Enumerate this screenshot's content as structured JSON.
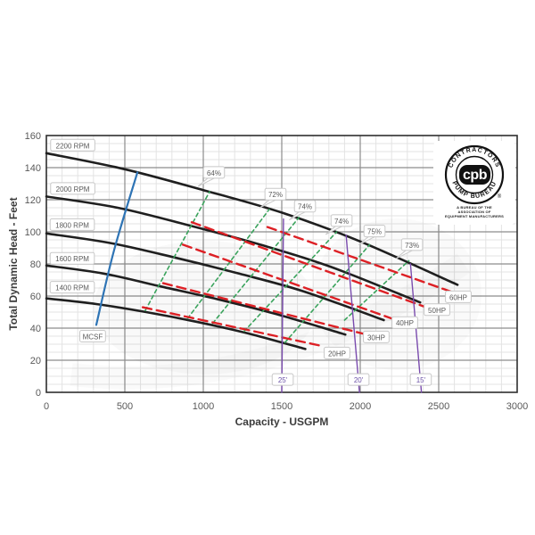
{
  "colors": {
    "rpm_curve": "#1f1f1f",
    "mcsf_line": "#2e74b5",
    "efficiency_line": "#3aa35c",
    "hp_line": "#dd2025",
    "npsh_line": "#7a4bae",
    "grid_major": "#8c8c8c",
    "grid_minor": "#e3e3e3",
    "plot_border": "#2e2e2e",
    "tick_text": "#595959",
    "label_box_border": "#c8c8c8",
    "label_text": "#595959",
    "npsh_label_text": "#6e55a8"
  },
  "chart_data": {
    "type": "line",
    "title": "",
    "xlabel": "Capacity - USGPM",
    "ylabel": "Total Dynamic Head - Feet",
    "xlim": [
      0,
      3000
    ],
    "ylim": [
      0,
      160
    ],
    "x_ticks": [
      0,
      500,
      1000,
      1500,
      2000,
      2500,
      3000
    ],
    "y_ticks": [
      0,
      20,
      40,
      60,
      80,
      100,
      120,
      140,
      160
    ],
    "x_minor_step": 100,
    "y_minor_step": 5,
    "grid": "on",
    "series": [
      {
        "name": "2200 RPM",
        "group": "rpm",
        "points": [
          [
            0,
            149
          ],
          [
            500,
            139
          ],
          [
            1000,
            126
          ],
          [
            1500,
            112
          ],
          [
            2000,
            94
          ],
          [
            2620,
            67
          ]
        ]
      },
      {
        "name": "2000 RPM",
        "group": "rpm",
        "points": [
          [
            0,
            122
          ],
          [
            455,
            115
          ],
          [
            909,
            104
          ],
          [
            1364,
            92
          ],
          [
            1818,
            78
          ],
          [
            2382,
            56
          ]
        ]
      },
      {
        "name": "1800 RPM",
        "group": "rpm",
        "points": [
          [
            0,
            99
          ],
          [
            409,
            93
          ],
          [
            818,
            84
          ],
          [
            1227,
            74
          ],
          [
            1636,
            63
          ],
          [
            2150,
            45
          ]
        ]
      },
      {
        "name": "1600 RPM",
        "group": "rpm",
        "points": [
          [
            0,
            79
          ],
          [
            364,
            74
          ],
          [
            727,
            66
          ],
          [
            1091,
            58
          ],
          [
            1455,
            49
          ],
          [
            1905,
            36
          ]
        ]
      },
      {
        "name": "1400 RPM",
        "group": "rpm",
        "points": [
          [
            0,
            58.5
          ],
          [
            318,
            55
          ],
          [
            636,
            50
          ],
          [
            955,
            44
          ],
          [
            1273,
            37
          ],
          [
            1650,
            27
          ]
        ]
      },
      {
        "name": "MCSF",
        "group": "mcsf",
        "points": [
          [
            318,
            42
          ],
          [
            430,
            88
          ],
          [
            580,
            137
          ]
        ]
      },
      {
        "name": "64%",
        "group": "efficiency",
        "points": [
          [
            630,
            51
          ],
          [
            1040,
            125
          ]
        ]
      },
      {
        "name": "72%",
        "group": "efficiency",
        "points": [
          [
            900,
            46
          ],
          [
            1420,
            114
          ]
        ]
      },
      {
        "name": "74%",
        "group": "efficiency",
        "points": [
          [
            1060,
            43
          ],
          [
            1610,
            109
          ]
        ]
      },
      {
        "name": "74%",
        "group": "efficiency",
        "points": [
          [
            1260,
            38
          ],
          [
            1850,
            100
          ]
        ]
      },
      {
        "name": "75%",
        "group": "efficiency",
        "points": [
          [
            1520,
            31
          ],
          [
            2060,
            92
          ]
        ]
      },
      {
        "name": "73%",
        "group": "efficiency",
        "points": [
          [
            1900,
            45
          ],
          [
            2310,
            82
          ]
        ]
      },
      {
        "name": "20HP",
        "group": "hp",
        "points": [
          [
            614,
            53
          ],
          [
            1750,
            29
          ]
        ]
      },
      {
        "name": "30HP",
        "group": "hp",
        "points": [
          [
            744,
            68
          ],
          [
            2040,
            36
          ]
        ]
      },
      {
        "name": "40HP",
        "group": "hp",
        "points": [
          [
            870,
            92
          ],
          [
            2230,
            45
          ]
        ]
      },
      {
        "name": "50HP",
        "group": "hp",
        "points": [
          [
            926,
            106
          ],
          [
            2420,
            53
          ]
        ]
      },
      {
        "name": "60HP",
        "group": "hp",
        "points": [
          [
            1409,
            103
          ],
          [
            2600,
            62
          ]
        ]
      },
      {
        "name": "25'",
        "group": "npsh",
        "points": [
          [
            1511,
            108
          ],
          [
            1500,
            0
          ]
        ]
      },
      {
        "name": "20'",
        "group": "npsh",
        "points": [
          [
            1910,
            98
          ],
          [
            1995,
            0
          ]
        ]
      },
      {
        "name": "15'",
        "group": "npsh",
        "points": [
          [
            2320,
            80
          ],
          [
            2390,
            0
          ]
        ]
      }
    ],
    "labels": [
      {
        "text": "2200 RPM",
        "g": 168,
        "f": 154,
        "kind": "rpm",
        "tail": false
      },
      {
        "text": "2000 RPM",
        "g": 168,
        "f": 127,
        "kind": "rpm",
        "tail": false
      },
      {
        "text": "1800 RPM",
        "g": 165,
        "f": 104.5,
        "kind": "rpm",
        "tail": false
      },
      {
        "text": "1600 RPM",
        "g": 165,
        "f": 83.5,
        "kind": "rpm",
        "tail": false
      },
      {
        "text": "1400 RPM",
        "g": 165,
        "f": 65.5,
        "kind": "rpm",
        "tail": false
      },
      {
        "text": "MCSF",
        "g": 295,
        "f": 35,
        "kind": "mcsf",
        "tail": false
      },
      {
        "text": "64%",
        "g": 1068,
        "f": 137,
        "kind": "efficiency",
        "tail": true
      },
      {
        "text": "72%",
        "g": 1460,
        "f": 123.5,
        "kind": "efficiency",
        "tail": true
      },
      {
        "text": "74%",
        "g": 1648,
        "f": 116,
        "kind": "efficiency",
        "tail": true
      },
      {
        "text": "74%",
        "g": 1881,
        "f": 107,
        "kind": "efficiency",
        "tail": true
      },
      {
        "text": "75%",
        "g": 2091,
        "f": 100.5,
        "kind": "efficiency",
        "tail": true
      },
      {
        "text": "73%",
        "g": 2330,
        "f": 92,
        "kind": "efficiency",
        "tail": true
      },
      {
        "text": "20HP",
        "g": 1852,
        "f": 24.5,
        "kind": "hp",
        "tail": false
      },
      {
        "text": "30HP",
        "g": 2102,
        "f": 34.5,
        "kind": "hp",
        "tail": false
      },
      {
        "text": "40HP",
        "g": 2284,
        "f": 43.5,
        "kind": "hp",
        "tail": false
      },
      {
        "text": "50HP",
        "g": 2489,
        "f": 51.5,
        "kind": "hp",
        "tail": false
      },
      {
        "text": "60HP",
        "g": 2625,
        "f": 59.5,
        "kind": "hp",
        "tail": false
      },
      {
        "text": "25'",
        "g": 1506,
        "f": 8,
        "kind": "npsh",
        "tail": false
      },
      {
        "text": "20'",
        "g": 1989,
        "f": 8,
        "kind": "npsh",
        "tail": false
      },
      {
        "text": "15'",
        "g": 2386,
        "f": 8,
        "kind": "npsh",
        "tail": false
      }
    ],
    "legend_position": "none"
  },
  "logo": {
    "top_text": "CONTRACTORS",
    "bottom_text": "PUMP BUREAU",
    "center_text": "cpb",
    "registered": "®",
    "sub_text": [
      "A BUREAU OF THE",
      "ASSOCIATION OF",
      "EQUIPMENT MANUFACTURERS"
    ]
  }
}
